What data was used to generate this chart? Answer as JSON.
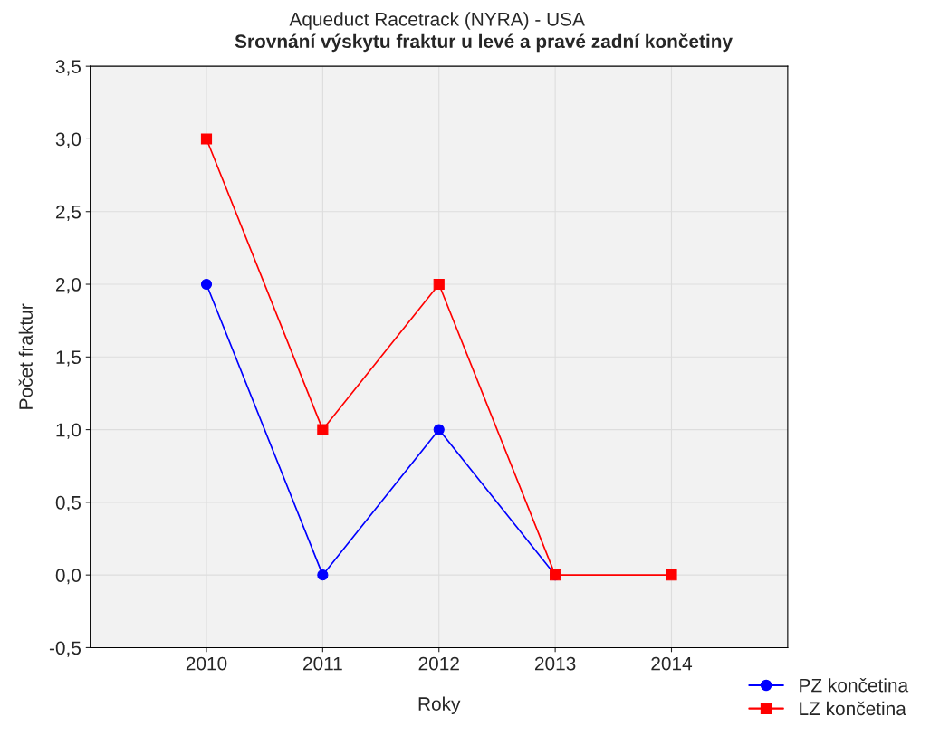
{
  "chart_data": {
    "type": "line",
    "title": "Aqueduct Racetrack (NYRA) - USA",
    "subtitle": "Srovnání výskytu fraktur u levé a pravé zadní končetiny",
    "xlabel": "Roky",
    "ylabel": "Počet fraktur",
    "categories": [
      "2010",
      "2011",
      "2012",
      "2013",
      "2014"
    ],
    "series": [
      {
        "name": "PZ končetina",
        "color": "#0000ff",
        "marker": "circle",
        "values": [
          2,
          0,
          1,
          0,
          null
        ]
      },
      {
        "name": "LZ končetina",
        "color": "#ff0000",
        "marker": "square",
        "values": [
          3,
          1,
          2,
          0,
          0
        ]
      }
    ],
    "ylim": [
      -0.5,
      3.5
    ],
    "yticks": [
      {
        "value": -0.5,
        "label": "-0,5"
      },
      {
        "value": 0,
        "label": "0,0"
      },
      {
        "value": 0.5,
        "label": "0,5"
      },
      {
        "value": 1,
        "label": "1,0"
      },
      {
        "value": 1.5,
        "label": "1,5"
      },
      {
        "value": 2,
        "label": "2,0"
      },
      {
        "value": 2.5,
        "label": "2,5"
      },
      {
        "value": 3,
        "label": "3,0"
      },
      {
        "value": 3.5,
        "label": "3,5"
      }
    ],
    "grid": true,
    "legend": "bottom right",
    "line_style": "solid"
  }
}
